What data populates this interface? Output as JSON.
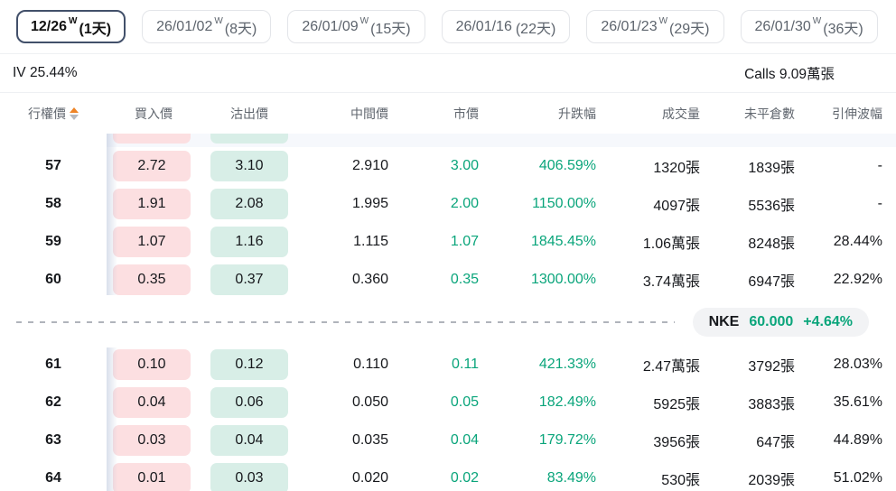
{
  "tabs": [
    {
      "date": "12/26",
      "w": "W",
      "days": "(1天)",
      "selected": true
    },
    {
      "date": "26/01/02",
      "w": "W",
      "days": "(8天)",
      "selected": false
    },
    {
      "date": "26/01/09",
      "w": "W",
      "days": "(15天)",
      "selected": false
    },
    {
      "date": "26/01/16",
      "w": "",
      "days": "(22天)",
      "selected": false
    },
    {
      "date": "26/01/23",
      "w": "W",
      "days": "(29天)",
      "selected": false
    },
    {
      "date": "26/01/30",
      "w": "W",
      "days": "(36天)",
      "selected": false
    }
  ],
  "summary": {
    "iv": "IV 25.44%",
    "calls": "Calls 9.09萬張"
  },
  "underlying": {
    "symbol": "NKE",
    "price": "60.000",
    "change": "+4.64%"
  },
  "table": {
    "headers": [
      "行權價",
      "買入價",
      "沽出價",
      "中間價",
      "市價",
      "升跌幅",
      "成交量",
      "未平倉數",
      "引伸波幅"
    ],
    "rows": [
      {
        "strike": "57",
        "bid": "2.72",
        "ask": "3.10",
        "mid": "2.910",
        "price": "3.00",
        "change": "406.59%",
        "volume": "1320張",
        "oi": "1839張",
        "iv": "-"
      },
      {
        "strike": "58",
        "bid": "1.91",
        "ask": "2.08",
        "mid": "1.995",
        "price": "2.00",
        "change": "1150.00%",
        "volume": "4097張",
        "oi": "5536張",
        "iv": "-"
      },
      {
        "strike": "59",
        "bid": "1.07",
        "ask": "1.16",
        "mid": "1.115",
        "price": "1.07",
        "change": "1845.45%",
        "volume": "1.06萬張",
        "oi": "8248張",
        "iv": "28.44%"
      },
      {
        "strike": "60",
        "bid": "0.35",
        "ask": "0.37",
        "mid": "0.360",
        "price": "0.35",
        "change": "1300.00%",
        "volume": "3.74萬張",
        "oi": "6947張",
        "iv": "22.92%"
      },
      {
        "strike": "61",
        "bid": "0.10",
        "ask": "0.12",
        "mid": "0.110",
        "price": "0.11",
        "change": "421.33%",
        "volume": "2.47萬張",
        "oi": "3792張",
        "iv": "28.03%"
      },
      {
        "strike": "62",
        "bid": "0.04",
        "ask": "0.06",
        "mid": "0.050",
        "price": "0.05",
        "change": "182.49%",
        "volume": "5925張",
        "oi": "3883張",
        "iv": "35.61%"
      },
      {
        "strike": "63",
        "bid": "0.03",
        "ask": "0.04",
        "mid": "0.035",
        "price": "0.04",
        "change": "179.72%",
        "volume": "3956張",
        "oi": "647張",
        "iv": "44.89%"
      },
      {
        "strike": "64",
        "bid": "0.01",
        "ask": "0.03",
        "mid": "0.020",
        "price": "0.02",
        "change": "83.49%",
        "volume": "530張",
        "oi": "2039張",
        "iv": "51.02%"
      }
    ]
  },
  "colors": {
    "green_text": "#0aa57b",
    "bid_bg": "#fcdfe1",
    "ask_bg": "#d8eee7",
    "sort_up_orange": "#ee8426",
    "selected_tab_border": "#42506a"
  }
}
